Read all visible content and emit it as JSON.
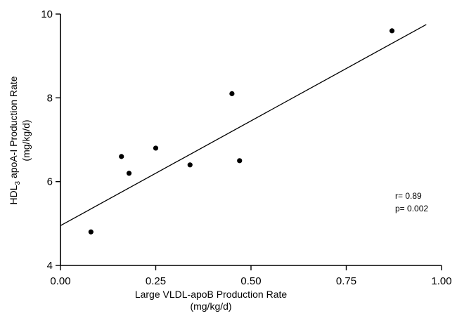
{
  "chart_data": {
    "type": "scatter",
    "xlabel_line1": "Large VLDL-apoB Production Rate",
    "xlabel_line2": "(mg/kg/d)",
    "ylabel_line1_pre": "HDL",
    "ylabel_line1_sub": "3",
    "ylabel_line1_post": " apoA-I Production Rate",
    "ylabel_line2": "(mg/kg/d)",
    "xlim": [
      0,
      1
    ],
    "ylim": [
      4,
      10
    ],
    "xticks": [
      "0.00",
      "0.25",
      "0.50",
      "0.75",
      "1.00"
    ],
    "xtick_values": [
      0,
      0.25,
      0.5,
      0.75,
      1.0
    ],
    "yticks": [
      "4",
      "6",
      "8",
      "10"
    ],
    "ytick_values": [
      4,
      6,
      8,
      10
    ],
    "grid": false,
    "points": [
      {
        "x": 0.08,
        "y": 4.8
      },
      {
        "x": 0.16,
        "y": 6.6
      },
      {
        "x": 0.18,
        "y": 6.2
      },
      {
        "x": 0.25,
        "y": 6.8
      },
      {
        "x": 0.34,
        "y": 6.4
      },
      {
        "x": 0.45,
        "y": 8.1
      },
      {
        "x": 0.47,
        "y": 6.5
      },
      {
        "x": 0.87,
        "y": 9.6
      }
    ],
    "regression": {
      "x0": 0.0,
      "y0": 4.95,
      "x1": 0.96,
      "y1": 9.75
    },
    "annotations": {
      "r": "r= 0.89",
      "p": "p= 0.002"
    }
  }
}
